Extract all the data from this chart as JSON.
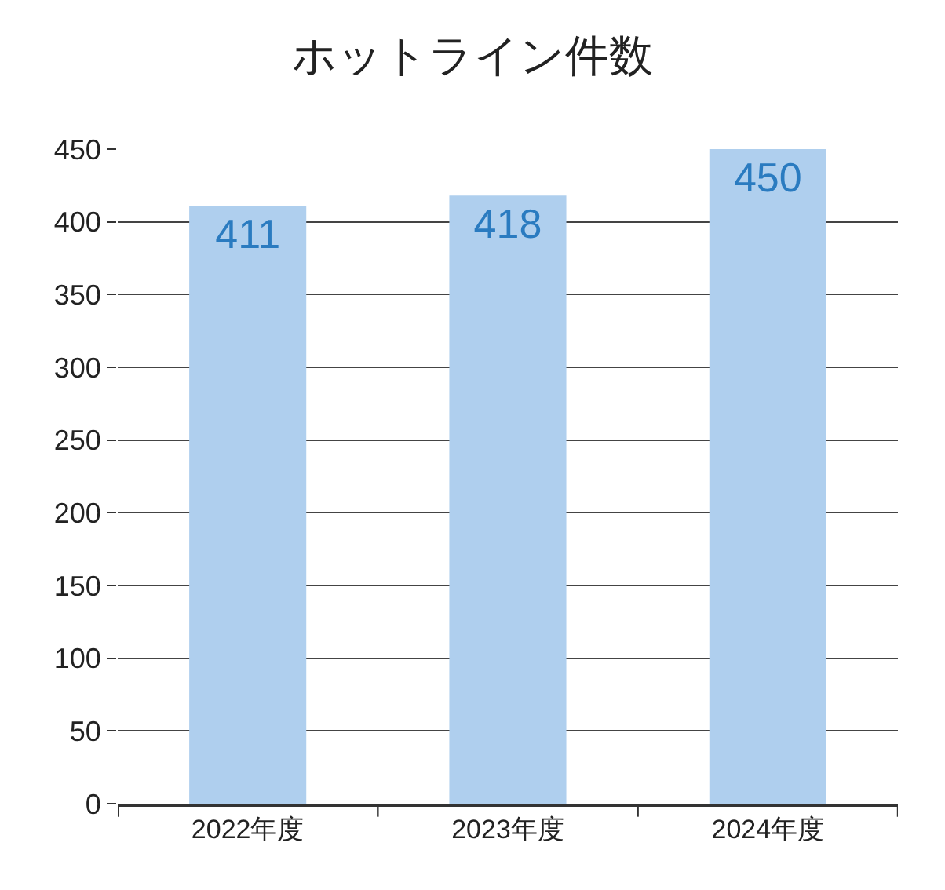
{
  "chart_data": {
    "type": "bar",
    "title": "ホットライン件数",
    "categories": [
      "2022年度",
      "2023年度",
      "2024年度"
    ],
    "values": [
      411,
      418,
      450
    ],
    "color": "#afcfee",
    "ylim": [
      0,
      450
    ],
    "yticks": [
      0,
      50,
      100,
      150,
      200,
      250,
      300,
      350,
      400,
      450
    ],
    "grid": "y",
    "data_labels": true
  }
}
